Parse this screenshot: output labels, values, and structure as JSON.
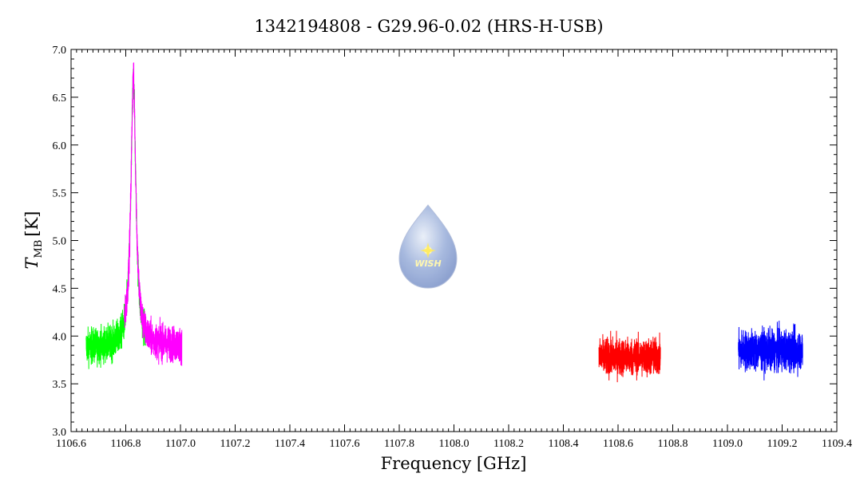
{
  "chart_data": {
    "type": "line",
    "title": "1342194808 - G29.96-0.02 (HRS-H-USB)",
    "xlabel": "Frequency [GHz]",
    "ylabel_main": "T",
    "ylabel_sub": "MB",
    "ylabel_unit": "[K]",
    "xlim": [
      1106.6,
      1109.4
    ],
    "ylim": [
      3.0,
      7.0
    ],
    "x_ticks": [
      "1106.6",
      "1106.8",
      "1107.0",
      "1107.2",
      "1107.4",
      "1107.6",
      "1107.8",
      "1108.0",
      "1108.2",
      "1108.4",
      "1108.6",
      "1108.8",
      "1109.0",
      "1109.2",
      "1109.4"
    ],
    "y_ticks": [
      "3.0",
      "3.5",
      "4.0",
      "4.5",
      "5.0",
      "5.5",
      "6.0",
      "6.5",
      "7.0"
    ],
    "grid": false,
    "logo": {
      "text": "WISH"
    },
    "series": [
      {
        "color": "#00ff00",
        "x_range": [
          1106.655,
          1106.875
        ],
        "baseline": 3.88,
        "noise": 0.13,
        "peak": {
          "center": 1106.828,
          "height": 2.8,
          "width": 0.011
        }
      },
      {
        "color": "#ff00ff",
        "x_range": [
          1106.795,
          1107.005
        ],
        "baseline": 3.9,
        "noise": 0.13,
        "peak": {
          "center": 1106.828,
          "height": 2.8,
          "width": 0.011
        }
      },
      {
        "color": "#ff0000",
        "x_range": [
          1108.53,
          1108.755
        ],
        "baseline": 3.78,
        "noise": 0.14
      },
      {
        "color": "#0000ff",
        "x_range": [
          1109.04,
          1109.275
        ],
        "baseline": 3.85,
        "noise": 0.15
      }
    ]
  }
}
